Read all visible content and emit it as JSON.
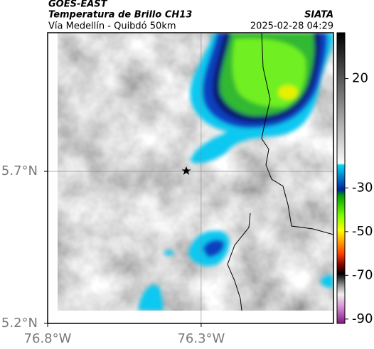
{
  "header": {
    "satellite": "GOES-EAST",
    "product": "Temperatura de Brillo CH13",
    "agency": "SIATA",
    "region": "Vía Medellín - Quibdó 50km",
    "timestamp": "2025-02-28 04:29"
  },
  "map": {
    "lat_range": [
      5.2,
      6.156
    ],
    "lon_range": [
      -76.8,
      -75.869
    ],
    "lat_ticks": [
      {
        "value": 5.7,
        "label": "5.7°N"
      },
      {
        "value": 5.2,
        "label": "5.2°N"
      }
    ],
    "lon_ticks": [
      {
        "value": -76.8,
        "label": "76.8°W"
      },
      {
        "value": -76.3,
        "label": "76.3°W"
      }
    ]
  },
  "colorbar": {
    "range": [
      -92,
      41
    ],
    "ticks": [
      20,
      -30,
      -50,
      -70,
      -90
    ]
  }
}
